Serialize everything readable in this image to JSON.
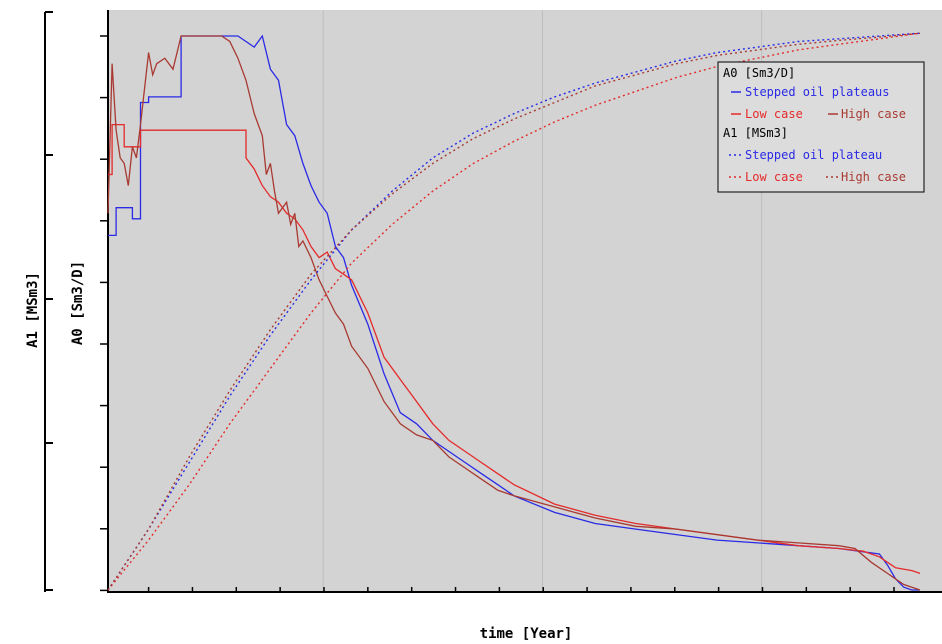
{
  "chart_data": {
    "type": "line",
    "xlabel": "time [Year]",
    "y_left_outer_label": "A1 [MSm3]",
    "y_left_inner_label": "A0 [Sm3/D]",
    "grid": true,
    "legend_position": "top-right",
    "x_tick_labels_visible": false,
    "y_tick_labels_visible": false,
    "x_range": [
      0,
      100
    ],
    "y_range": [
      0,
      100
    ],
    "legend": {
      "group_a0": "A0 [Sm3/D]",
      "a0_stepped": "Stepped oil plateaus",
      "a0_low": "Low case",
      "a0_high": "High case",
      "group_a1": "A1 [MSm3]",
      "a1_stepped": "Stepped oil plateau",
      "a1_low": "Low case",
      "a1_high": "High case"
    },
    "colors": {
      "stepped": "#2a2ae6",
      "low": "#e42a2a",
      "high": "#a83a32",
      "plot_bg": "#d3d3d3",
      "grid": "#bcbcbc"
    },
    "series": [
      {
        "name": "Stepped oil plateaus",
        "group": "A0",
        "style": "solid",
        "color_key": "stepped",
        "x": [
          0,
          1,
          1,
          3,
          3,
          4,
          4,
          5,
          5,
          6,
          6,
          9,
          9,
          16,
          16,
          17,
          18,
          19,
          20,
          21,
          22,
          23,
          24,
          25,
          26,
          27,
          28,
          29,
          30,
          32,
          34,
          36,
          38,
          40,
          42,
          44,
          46,
          48,
          50,
          55,
          60,
          65,
          70,
          75,
          80,
          85,
          90,
          95,
          96,
          97,
          98,
          99,
          100
        ],
        "y": [
          64,
          64,
          69,
          69,
          67,
          67,
          88,
          88,
          89,
          89,
          89,
          89,
          100,
          100,
          100,
          99,
          98,
          100,
          94,
          92,
          84,
          82,
          77,
          73,
          70,
          68,
          62,
          60,
          55,
          48,
          39,
          32,
          30,
          27,
          25,
          23,
          21,
          19,
          17,
          14,
          12,
          11,
          10,
          9,
          8.5,
          8,
          7.5,
          6.5,
          4.5,
          2,
          0.5,
          0,
          0
        ]
      },
      {
        "name": "Low case",
        "group": "A0",
        "style": "solid",
        "color_key": "low",
        "x": [
          0,
          0.5,
          0.5,
          2,
          2,
          4,
          4,
          17,
          17,
          18,
          19,
          20,
          21,
          22,
          23,
          24,
          25,
          26,
          27,
          28,
          29,
          30,
          32,
          34,
          36,
          38,
          40,
          42,
          44,
          46,
          48,
          50,
          55,
          60,
          65,
          70,
          75,
          80,
          85,
          90,
          93,
          95,
          97,
          99,
          100
        ],
        "y": [
          75,
          75,
          84,
          84,
          80,
          80,
          83,
          83,
          78,
          76,
          73,
          71,
          70,
          68,
          67,
          65,
          62,
          60,
          61,
          58,
          57,
          56,
          50,
          42,
          38,
          34,
          30,
          27,
          25,
          23,
          21,
          19,
          15.5,
          13.5,
          12,
          11,
          10,
          9,
          8,
          7.5,
          7,
          6,
          4,
          3.5,
          3
        ]
      },
      {
        "name": "High case",
        "group": "A0",
        "style": "solid",
        "color_key": "high",
        "x": [
          0,
          0.5,
          1,
          1.5,
          2,
          2.5,
          3,
          3.5,
          4,
          5,
          5.5,
          6,
          7,
          8,
          9,
          10,
          14,
          15,
          16,
          17,
          18,
          19,
          19.5,
          20,
          20.5,
          21,
          22,
          22.5,
          23,
          23.5,
          24,
          25,
          26,
          27,
          28,
          29,
          30,
          32,
          34,
          36,
          38,
          40,
          42,
          44,
          46,
          48,
          50,
          55,
          60,
          65,
          70,
          75,
          80,
          85,
          90,
          92,
          94,
          96,
          98,
          100
        ],
        "y": [
          68,
          95,
          83,
          78,
          77,
          73,
          80,
          78,
          84,
          97,
          93,
          95,
          96,
          94,
          100,
          100,
          100,
          99,
          96,
          92,
          86,
          82,
          75,
          77,
          72,
          68,
          70,
          66,
          68,
          62,
          63,
          60,
          56,
          53,
          50,
          48,
          44,
          40,
          34,
          30,
          28,
          27,
          24,
          22,
          20,
          18,
          17,
          15,
          13,
          11.5,
          11,
          10,
          9,
          8.5,
          8,
          7.5,
          5,
          3,
          1,
          0
        ]
      },
      {
        "name": "Stepped oil plateau",
        "group": "A1",
        "style": "dotted",
        "color_key": "stepped",
        "x": [
          0,
          5,
          10,
          15,
          20,
          25,
          30,
          35,
          40,
          45,
          50,
          55,
          60,
          65,
          70,
          75,
          80,
          85,
          90,
          95,
          100
        ],
        "y": [
          0,
          11,
          23,
          35,
          46,
          56,
          65,
          72,
          78,
          82.5,
          86,
          89,
          91.5,
          93.5,
          95.5,
          97,
          98,
          99,
          99.5,
          100,
          100.5
        ]
      },
      {
        "name": "Low case",
        "group": "A1",
        "style": "dotted",
        "color_key": "low",
        "x": [
          0,
          5,
          10,
          15,
          20,
          25,
          30,
          35,
          40,
          45,
          50,
          55,
          60,
          65,
          70,
          75,
          80,
          85,
          90,
          95,
          100
        ],
        "y": [
          0,
          9,
          19,
          30,
          40,
          50,
          59,
          66,
          72,
          77,
          81,
          84.5,
          87.5,
          90,
          92.5,
          94.5,
          96,
          97.5,
          98.5,
          99.5,
          100.5
        ]
      },
      {
        "name": "High case",
        "group": "A1",
        "style": "dotted",
        "color_key": "high",
        "x": [
          0,
          5,
          10,
          15,
          20,
          25,
          30,
          35,
          40,
          45,
          50,
          55,
          60,
          65,
          70,
          75,
          80,
          85,
          90,
          95,
          100
        ],
        "y": [
          0,
          11,
          24,
          36,
          47,
          57,
          65,
          71.5,
          77,
          81.5,
          85,
          88,
          91,
          93,
          95,
          96.5,
          97.5,
          98.5,
          99.2,
          99.8,
          100.5
        ]
      }
    ]
  }
}
